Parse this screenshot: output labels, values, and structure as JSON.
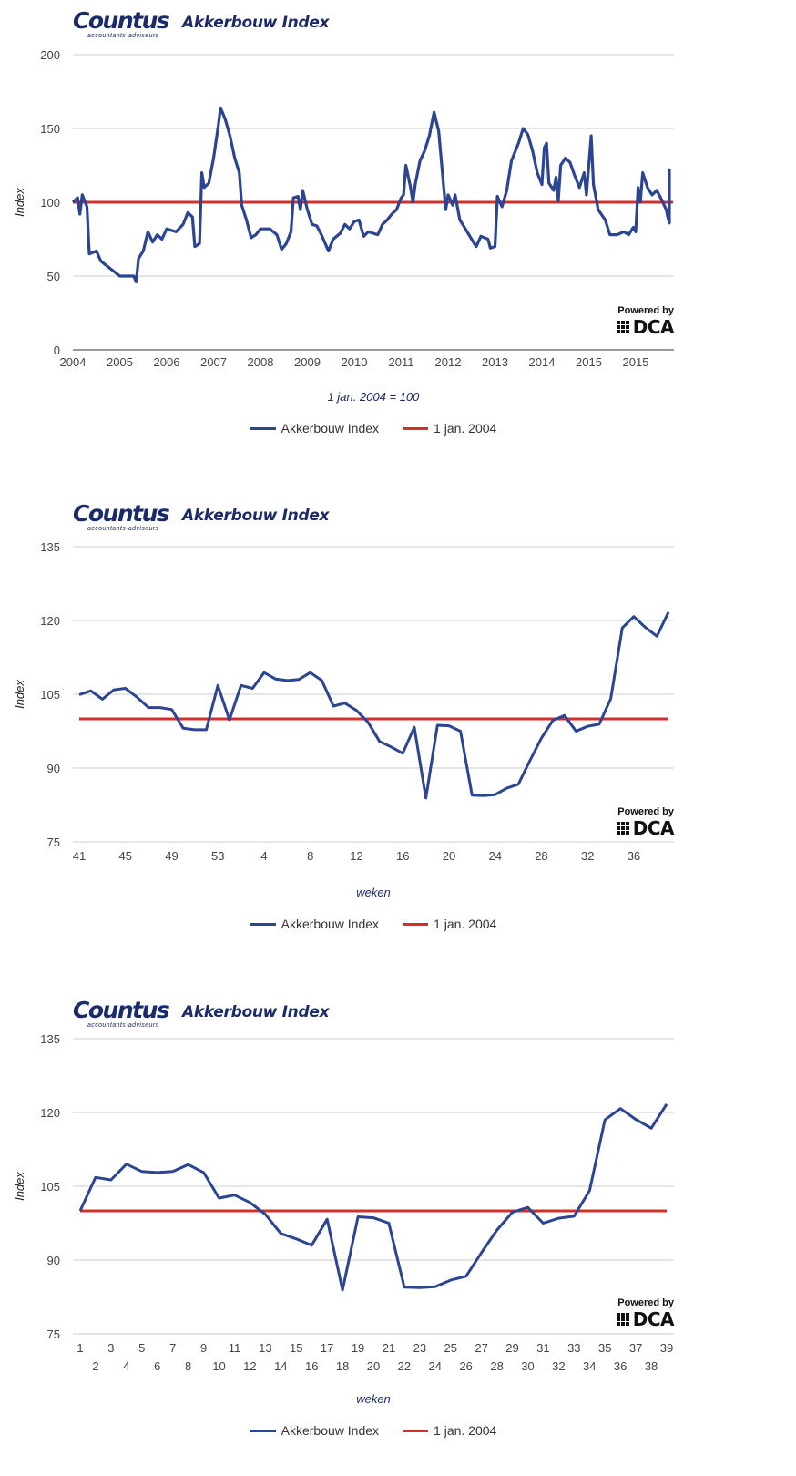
{
  "brand": {
    "logo_text": "Countus",
    "logo_subtext": "accountants·adviseurs",
    "powered_by": "Powered by",
    "powered_logo": "DCA",
    "colors": {
      "brand_navy": "#1b2a6b",
      "series_blue": "#2b4593",
      "reference_red": "#d32f2f",
      "grid": "#cccccc"
    }
  },
  "chart_data": [
    {
      "type": "line",
      "title": "Akkerbouw Index",
      "xlabel": "1 jan. 2004 = 100",
      "ylabel": "Index",
      "ylim": [
        0,
        200
      ],
      "yticks": [
        0,
        50,
        100,
        150,
        200
      ],
      "grid": true,
      "legend_position": "bottom",
      "x_tick_labels": [
        "2004",
        "2005",
        "2006",
        "2007",
        "2008",
        "2009",
        "2010",
        "2011",
        "2012",
        "2013",
        "2014",
        "2015",
        "2015"
      ],
      "x_unit_note": "x values are positions along the tick-label axis (0 = first label)",
      "series": [
        {
          "name": "Akkerbouw Index",
          "color": "#2b4593",
          "x": [
            0,
            0.1,
            0.15,
            0.2,
            0.3,
            0.35,
            0.5,
            0.6,
            0.8,
            1.0,
            1.3,
            1.35,
            1.4,
            1.5,
            1.6,
            1.7,
            1.8,
            1.9,
            2.0,
            2.2,
            2.35,
            2.45,
            2.55,
            2.6,
            2.7,
            2.75,
            2.8,
            2.9,
            3.0,
            3.1,
            3.15,
            3.25,
            3.35,
            3.45,
            3.55,
            3.6,
            3.7,
            3.8,
            3.9,
            4.0,
            4.2,
            4.35,
            4.45,
            4.55,
            4.65,
            4.7,
            4.8,
            4.85,
            4.9,
            5.0,
            5.1,
            5.2,
            5.3,
            5.45,
            5.55,
            5.7,
            5.8,
            5.9,
            6.0,
            6.1,
            6.2,
            6.3,
            6.4,
            6.5,
            6.6,
            6.7,
            6.8,
            6.9,
            7.0,
            7.05,
            7.1,
            7.2,
            7.25,
            7.3,
            7.4,
            7.5,
            7.6,
            7.7,
            7.8,
            7.85,
            7.95,
            8.0,
            8.1,
            8.15,
            8.25,
            8.35,
            8.5,
            8.6,
            8.7,
            8.85,
            8.9,
            9.0,
            9.05,
            9.15,
            9.25,
            9.35,
            9.5,
            9.6,
            9.7,
            9.8,
            9.9,
            10.0,
            10.05,
            10.1,
            10.15,
            10.25,
            10.3,
            10.35,
            10.4,
            10.5,
            10.6,
            10.7,
            10.8,
            10.9,
            10.95,
            11.05,
            11.1,
            11.2,
            11.35,
            11.45,
            11.6,
            11.75,
            11.85,
            11.95,
            12.0,
            12.05,
            12.1,
            12.15,
            12.25,
            12.35,
            12.45,
            12.55,
            12.65,
            12.7,
            12.75,
            12.85,
            12.9,
            13.0,
            13.05,
            13.1
          ],
          "values": [
            100,
            103,
            92,
            105,
            97,
            65,
            67,
            60,
            55,
            50,
            50,
            46,
            62,
            67,
            80,
            73,
            78,
            75,
            82,
            80,
            85,
            93,
            90,
            70,
            72,
            120,
            110,
            113,
            130,
            152,
            164,
            156,
            145,
            130,
            120,
            98,
            88,
            76,
            78,
            82,
            82,
            78,
            68,
            72,
            80,
            103,
            104,
            95,
            108,
            95,
            85,
            84,
            78,
            67,
            75,
            79,
            85,
            82,
            87,
            88,
            77,
            80,
            79,
            78,
            85,
            88,
            92,
            95,
            103,
            105,
            125,
            110,
            100,
            112,
            128,
            135,
            145,
            161,
            148,
            130,
            95,
            105,
            98,
            105,
            88,
            83,
            75,
            70,
            77,
            75,
            69,
            70,
            104,
            97,
            108,
            128,
            140,
            150,
            146,
            135,
            120,
            112,
            137,
            140,
            113,
            108,
            117,
            101,
            125,
            130,
            127,
            118,
            110,
            120,
            105,
            145,
            112,
            95,
            88,
            78,
            78,
            80,
            78,
            83,
            80,
            110,
            100,
            120,
            110,
            105,
            108,
            102,
            95,
            88,
            86,
            95,
            101,
            108,
            122,
            120
          ]
        },
        {
          "name": "1 jan. 2004",
          "color": "#d32f2f",
          "x": [
            0,
            13.1
          ],
          "values": [
            100,
            100
          ]
        }
      ]
    },
    {
      "type": "line",
      "title": "Akkerbouw Index",
      "xlabel": "weken",
      "ylabel": "Index",
      "ylim": [
        75,
        135
      ],
      "yticks": [
        75,
        90,
        105,
        120,
        135
      ],
      "grid": true,
      "legend_position": "bottom",
      "categories": [
        "41",
        "42",
        "43",
        "44",
        "45",
        "46",
        "47",
        "48",
        "49",
        "50",
        "51",
        "52",
        "53",
        "1",
        "2",
        "3",
        "4",
        "5",
        "6",
        "7",
        "8",
        "9",
        "10",
        "11",
        "12",
        "13",
        "14",
        "15",
        "16",
        "17",
        "18",
        "19",
        "20",
        "21",
        "22",
        "23",
        "24",
        "25",
        "26",
        "27",
        "28",
        "29",
        "30",
        "31",
        "32",
        "33",
        "34",
        "35",
        "36",
        "37",
        "38",
        "39"
      ],
      "x_tick_labels": [
        "41",
        "45",
        "49",
        "53",
        "4",
        "8",
        "12",
        "16",
        "20",
        "24",
        "28",
        "32",
        "36"
      ],
      "series": [
        {
          "name": "Akkerbouw Index",
          "color": "#2b4593",
          "values": [
            104.9,
            105.7,
            104.0,
            105.9,
            106.2,
            104.4,
            102.3,
            102.3,
            101.9,
            98.1,
            97.8,
            97.8,
            106.8,
            99.8,
            106.8,
            106.2,
            109.4,
            108.1,
            107.8,
            108.0,
            109.4,
            107.8,
            102.6,
            103.2,
            101.7,
            99.3,
            95.4,
            94.3,
            93.0,
            98.3,
            83.9,
            98.7,
            98.6,
            97.5,
            84.5,
            84.4,
            84.6,
            85.9,
            86.7,
            91.5,
            96.1,
            99.7,
            100.7,
            97.5,
            98.5,
            98.9,
            104.1,
            118.5,
            120.8,
            118.6,
            116.8,
            121.7
          ]
        },
        {
          "name": "1 jan. 2004",
          "color": "#d32f2f",
          "constant": 100
        }
      ]
    },
    {
      "type": "line",
      "title": "Akkerbouw Index",
      "xlabel": "weken",
      "ylabel": "Index",
      "ylim": [
        75,
        135
      ],
      "yticks": [
        75,
        90,
        105,
        120,
        135
      ],
      "grid": true,
      "legend_position": "bottom",
      "categories": [
        "1",
        "2",
        "3",
        "4",
        "5",
        "6",
        "7",
        "8",
        "9",
        "10",
        "11",
        "12",
        "13",
        "14",
        "15",
        "16",
        "17",
        "18",
        "19",
        "20",
        "21",
        "22",
        "23",
        "24",
        "25",
        "26",
        "27",
        "28",
        "29",
        "30",
        "31",
        "32",
        "33",
        "34",
        "35",
        "36",
        "37",
        "38",
        "39"
      ],
      "x_tick_labels": [
        "1",
        "2",
        "3",
        "4",
        "5",
        "6",
        "7",
        "8",
        "9",
        "10",
        "11",
        "12",
        "13",
        "14",
        "15",
        "16",
        "17",
        "18",
        "19",
        "20",
        "21",
        "22",
        "23",
        "24",
        "25",
        "26",
        "27",
        "28",
        "29",
        "30",
        "31",
        "32",
        "33",
        "34",
        "35",
        "36",
        "37",
        "38",
        "39"
      ],
      "series": [
        {
          "name": "Akkerbouw Index",
          "color": "#2b4593",
          "values": [
            100.0,
            106.8,
            106.3,
            109.5,
            108.0,
            107.8,
            108.0,
            109.4,
            107.8,
            102.6,
            103.2,
            101.7,
            99.3,
            95.4,
            94.3,
            93.0,
            98.3,
            83.9,
            98.8,
            98.6,
            97.5,
            84.5,
            84.4,
            84.6,
            85.9,
            86.7,
            91.5,
            96.1,
            99.7,
            100.7,
            97.5,
            98.5,
            98.9,
            104.1,
            118.5,
            120.8,
            118.6,
            116.8,
            121.7
          ]
        },
        {
          "name": "1 jan. 2004",
          "color": "#d32f2f",
          "constant": 100
        }
      ]
    }
  ]
}
